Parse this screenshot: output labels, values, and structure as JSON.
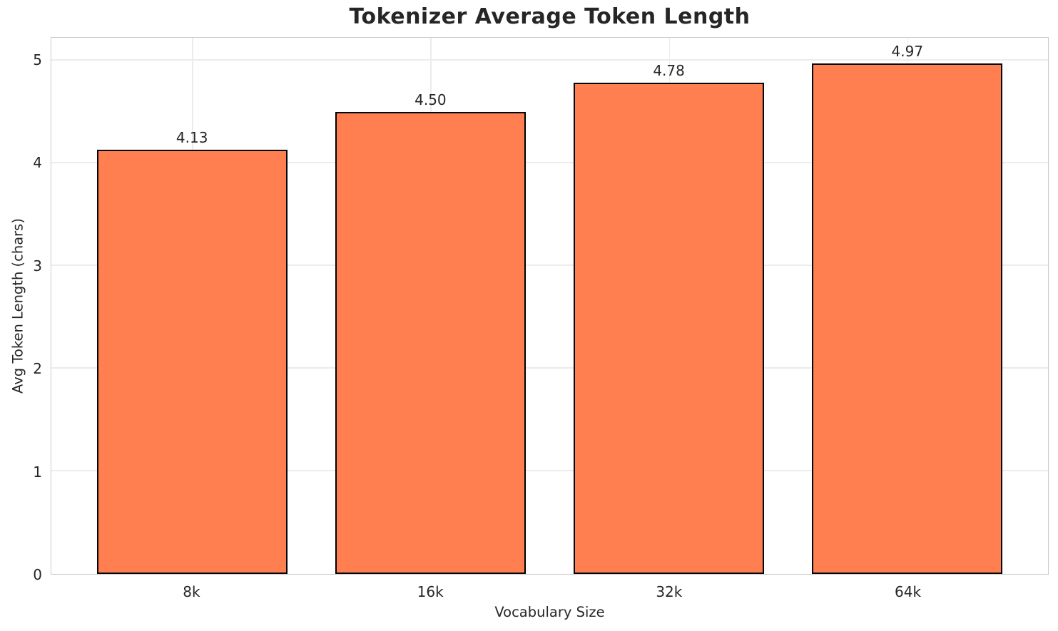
{
  "chart_data": {
    "type": "bar",
    "title": "Tokenizer Average Token Length",
    "xlabel": "Vocabulary Size",
    "ylabel": "Avg Token Length (chars)",
    "categories": [
      "8k",
      "16k",
      "32k",
      "64k"
    ],
    "values": [
      4.13,
      4.5,
      4.78,
      4.97
    ],
    "value_labels": [
      "4.13",
      "4.50",
      "4.78",
      "4.97"
    ],
    "yticks": [
      0,
      1,
      2,
      3,
      4,
      5
    ],
    "ylim": [
      0,
      5.2185
    ],
    "xlim": [
      -0.59,
      3.59
    ],
    "bar_width": 0.8,
    "grid": true,
    "legend": false,
    "bar_color": "#FF7F50",
    "bar_edge_color": "#000000"
  },
  "style": {
    "grid_color": "#ececec",
    "spine_color": "#cccccc",
    "text_color": "#262626",
    "background": "#ffffff"
  }
}
